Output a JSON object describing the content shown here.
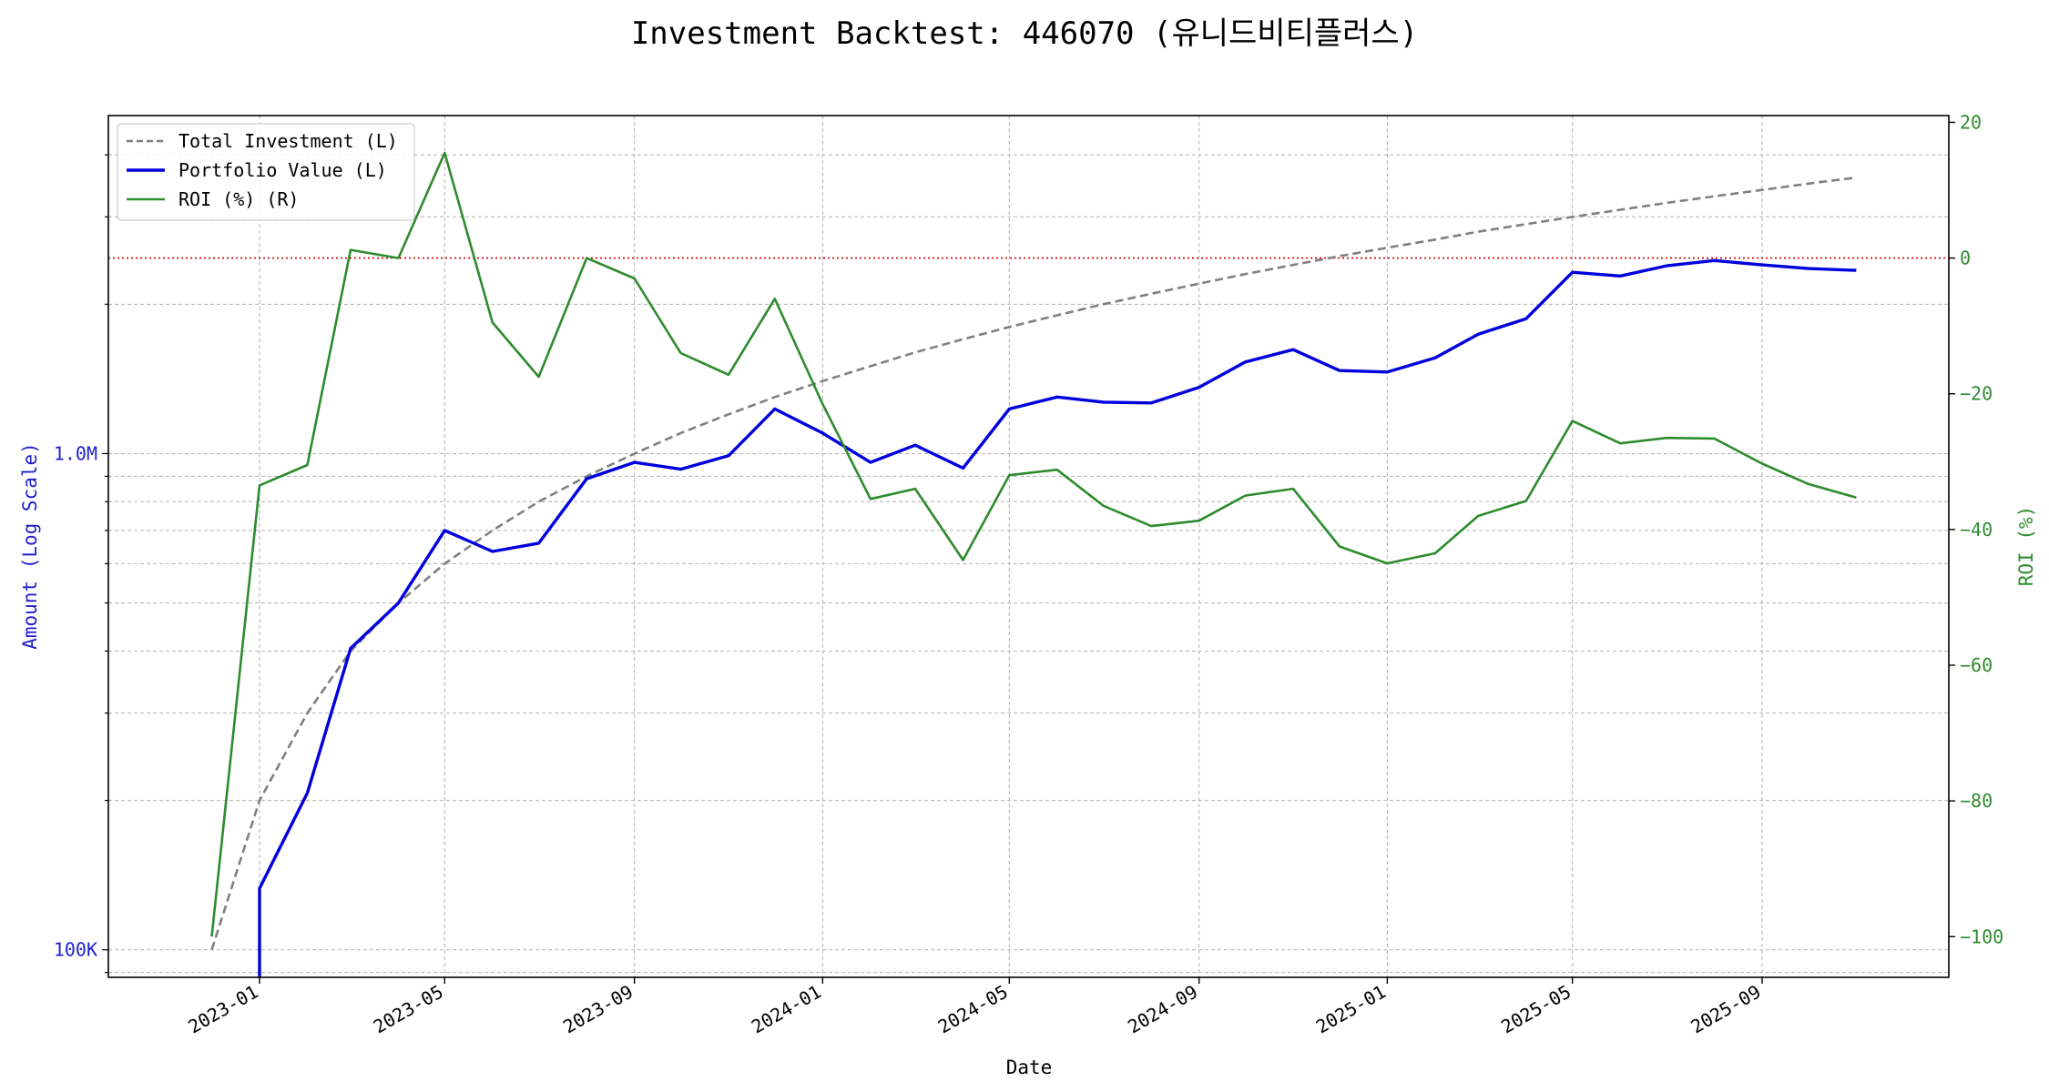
{
  "chart_data": {
    "type": "line",
    "title": "Investment Backtest: 446070 (유니드비티플러스)",
    "xlabel": "Date",
    "ylabel_left": "Amount (Log Scale)",
    "ylabel_right": "ROI (%)",
    "left_axis": {
      "scale": "log",
      "range": [
        88000,
        4800000
      ],
      "ticks": [
        100000,
        1000000
      ],
      "tick_labels": [
        "100K",
        "1.0M"
      ]
    },
    "right_axis": {
      "scale": "linear",
      "range": [
        -106,
        21
      ],
      "ticks": [
        20,
        0,
        -20,
        -40,
        -60,
        -80,
        -100
      ],
      "tick_labels": [
        "20",
        "0",
        "−20",
        "−40",
        "−60",
        "−80",
        "−100"
      ]
    },
    "x_axis": {
      "range": [
        "2022-09-25",
        "2025-12-31"
      ],
      "ticks": [
        "2023-01-01",
        "2023-05-01",
        "2023-09-01",
        "2024-01-01",
        "2024-05-01",
        "2024-09-01",
        "2025-01-01",
        "2025-05-01",
        "2025-09-01"
      ],
      "tick_labels": [
        "2023-01",
        "2023-05",
        "2023-09",
        "2024-01",
        "2024-05",
        "2024-09",
        "2025-01",
        "2025-05",
        "2025-09"
      ]
    },
    "grid": true,
    "legend_position": "top-left",
    "reference_line": {
      "axis": "right",
      "value": 0,
      "color": "#cc0000",
      "style": "dotted"
    },
    "dates": [
      "2022-12-01",
      "2023-01-01",
      "2023-02-01",
      "2023-03-01",
      "2023-04-01",
      "2023-05-01",
      "2023-06-01",
      "2023-07-01",
      "2023-08-01",
      "2023-09-01",
      "2023-10-01",
      "2023-11-01",
      "2023-12-01",
      "2024-01-01",
      "2024-02-01",
      "2024-03-01",
      "2024-04-01",
      "2024-05-01",
      "2024-06-01",
      "2024-07-01",
      "2024-08-01",
      "2024-09-01",
      "2024-10-01",
      "2024-11-01",
      "2024-12-01",
      "2025-01-01",
      "2025-02-01",
      "2025-03-01",
      "2025-04-01",
      "2025-05-01",
      "2025-06-01",
      "2025-07-01",
      "2025-08-01",
      "2025-09-01",
      "2025-10-01",
      "2025-11-01"
    ],
    "series": [
      {
        "name": "Total Investment (L)",
        "axis": "left",
        "color": "#808080",
        "style": "dashed",
        "values": [
          100000,
          200000,
          300000,
          400000,
          500000,
          600000,
          700000,
          800000,
          900000,
          1000000,
          1100000,
          1200000,
          1300000,
          1400000,
          1500000,
          1600000,
          1700000,
          1800000,
          1900000,
          2000000,
          2100000,
          2200000,
          2300000,
          2400000,
          2500000,
          2600000,
          2700000,
          2800000,
          2900000,
          3000000,
          3100000,
          3200000,
          3300000,
          3400000,
          3500000,
          3600000
        ]
      },
      {
        "name": "Portfolio Value (L)",
        "axis": "left",
        "color": "#0000dd",
        "style": "solid",
        "values": [
          null,
          133000,
          207000,
          405000,
          500000,
          700000,
          635000,
          660000,
          890000,
          960000,
          930000,
          990000,
          1230000,
          1100000,
          960000,
          1040000,
          935000,
          1230000,
          1300000,
          1270000,
          1265000,
          1360000,
          1530000,
          1620000,
          1470000,
          1460000,
          1560000,
          1740000,
          1870000,
          2320000,
          2280000,
          2390000,
          2450000,
          2400000,
          2360000,
          2340000
        ]
      },
      {
        "name": "ROI (%) (R)",
        "axis": "right",
        "color": "#2e8b2e",
        "style": "solid",
        "values": [
          -100,
          -33.5,
          -30.5,
          1.2,
          0,
          15.5,
          -9.5,
          -17.5,
          0,
          -3,
          -14,
          -17.2,
          -6,
          -21.5,
          -35.5,
          -34,
          -44.5,
          -32,
          -31.2,
          -36.5,
          -39.5,
          -38.7,
          -35,
          -34,
          -42.5,
          -45,
          -43.5,
          -38,
          -35.8,
          -24,
          -27.3,
          -26.5,
          -26.6,
          -30.3,
          -33.3,
          -35.3
        ]
      }
    ]
  }
}
